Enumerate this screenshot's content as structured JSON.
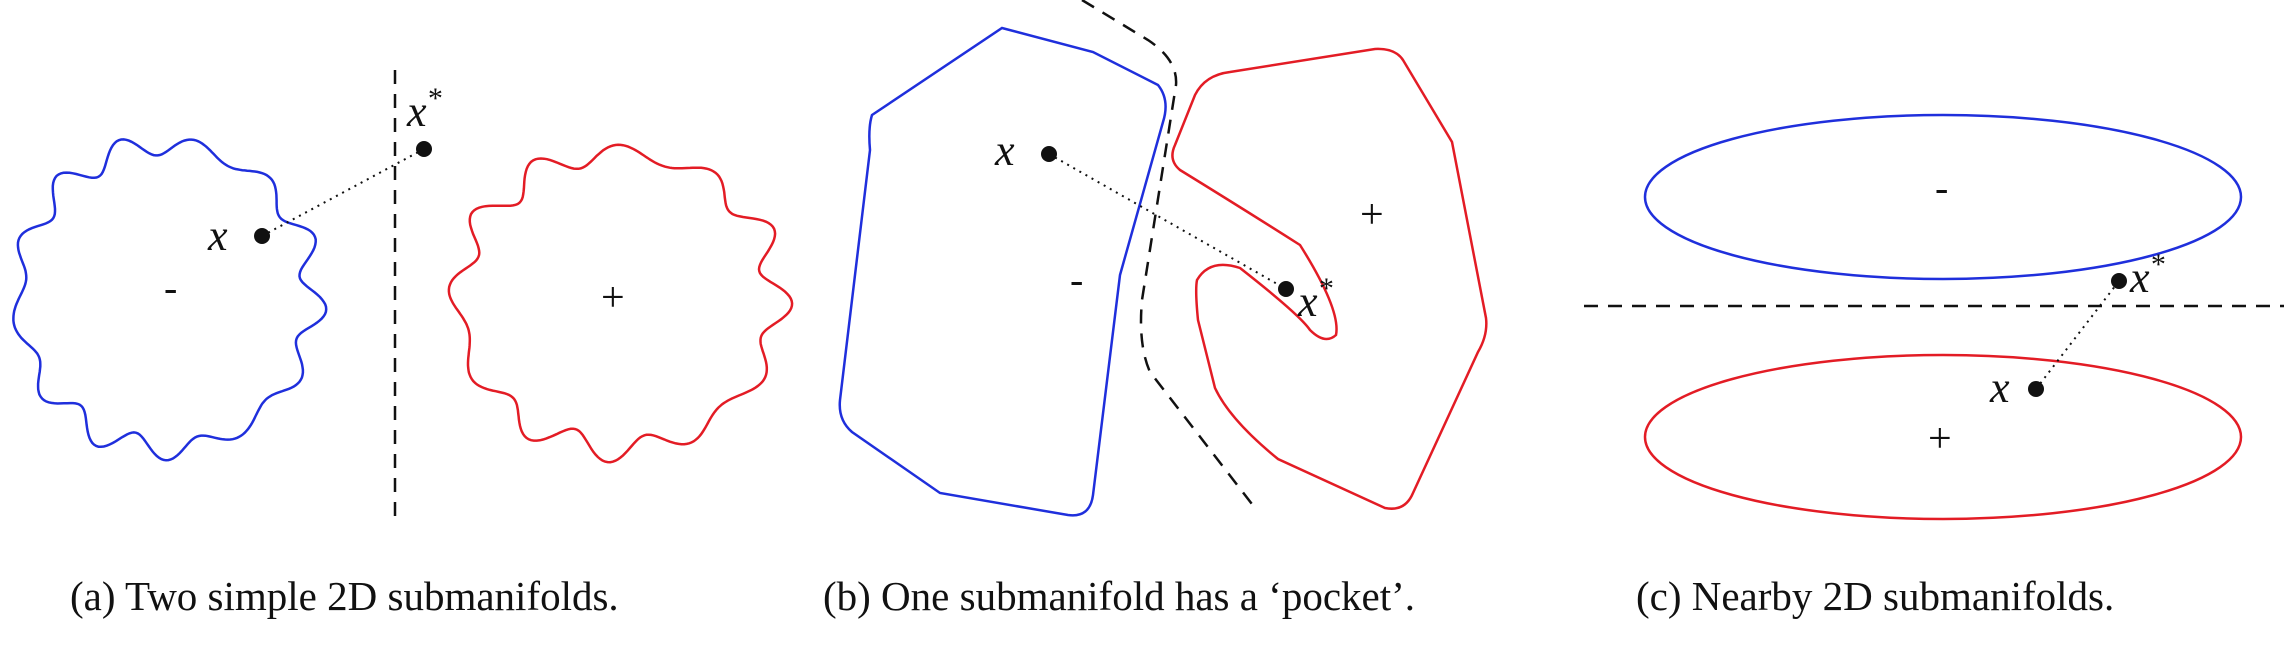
{
  "colors": {
    "negative": "#1f2fdc",
    "positive": "#e31c25",
    "ink": "#111111"
  },
  "panels": [
    {
      "id": "a",
      "caption": "(a) Two simple 2D submanifolds.",
      "point_label": "x",
      "adv_label": "x",
      "adv_sup": "*",
      "neg_label": "-",
      "pos_label": "+"
    },
    {
      "id": "b",
      "caption": "(b) One submanifold has a ‘pocket’.",
      "point_label": "x",
      "adv_label": "x",
      "adv_sup": "*",
      "neg_label": "-",
      "pos_label": "+"
    },
    {
      "id": "c",
      "caption": "(c) Nearby 2D submanifolds.",
      "point_label": "x",
      "adv_label": "x",
      "adv_sup": "*",
      "neg_label": "-",
      "pos_label": "+"
    }
  ]
}
